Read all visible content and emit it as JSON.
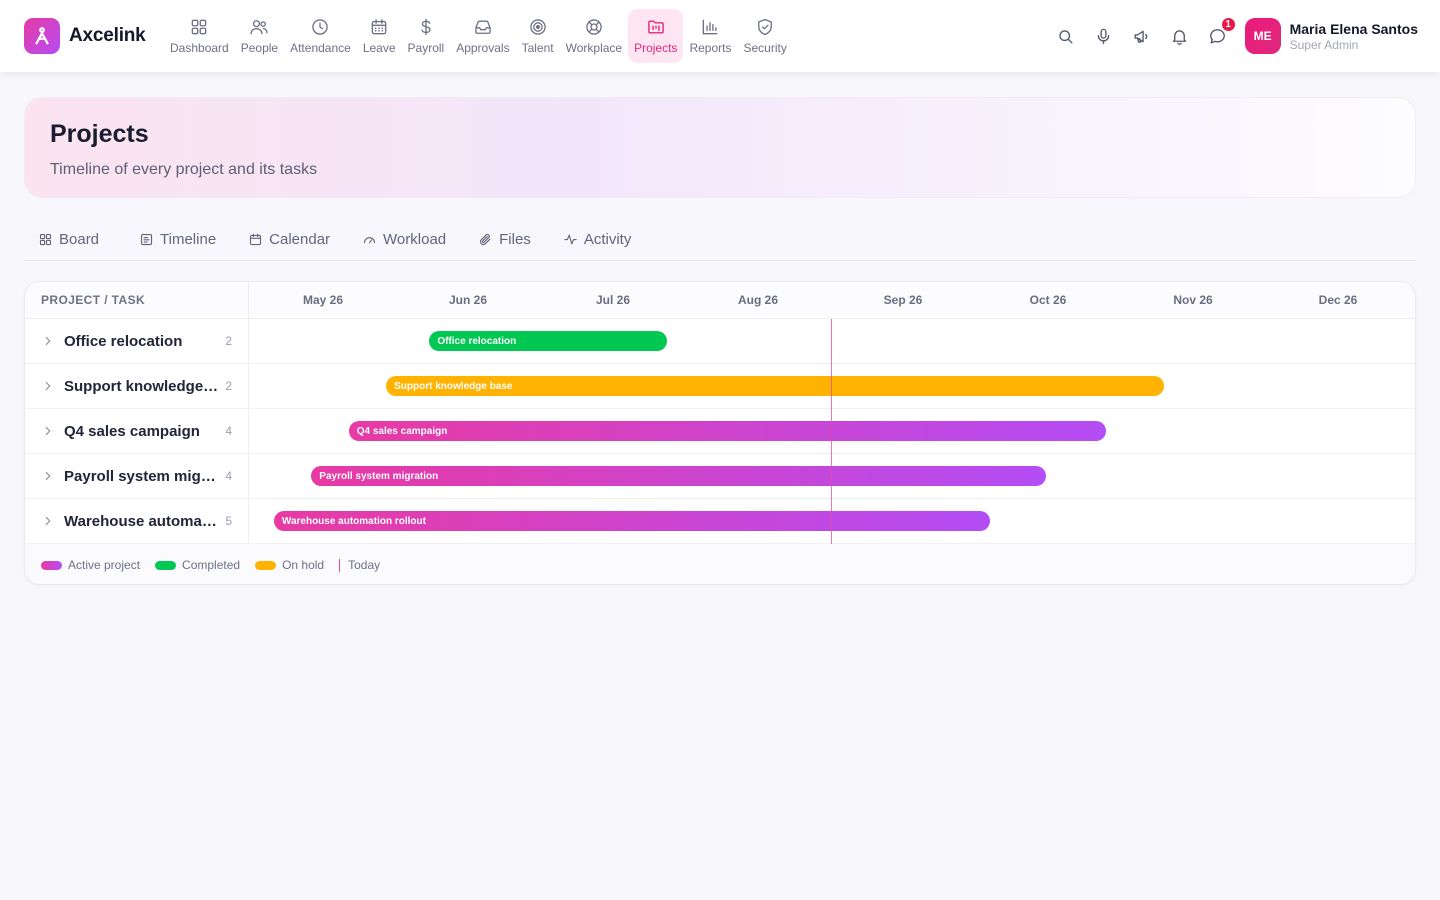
{
  "brand": {
    "name": "Axcelink",
    "accent": "#e0287f",
    "gradient": [
      "#e83aa3",
      "#b44df5"
    ]
  },
  "nav": [
    {
      "label": "Dashboard",
      "icon": "grid-icon"
    },
    {
      "label": "People",
      "icon": "users-icon"
    },
    {
      "label": "Attendance",
      "icon": "clock-icon"
    },
    {
      "label": "Leave",
      "icon": "calendar-icon"
    },
    {
      "label": "Payroll",
      "icon": "dollar-icon"
    },
    {
      "label": "Approvals",
      "icon": "inbox-icon"
    },
    {
      "label": "Talent",
      "icon": "target-icon"
    },
    {
      "label": "Workplace",
      "icon": "lifebuoy-icon"
    },
    {
      "label": "Projects",
      "icon": "kanban-icon",
      "active": true
    },
    {
      "label": "Reports",
      "icon": "bar-chart-icon"
    },
    {
      "label": "Security",
      "icon": "shield-icon"
    }
  ],
  "tools": {
    "notifications_badge": "1"
  },
  "user": {
    "initials": "ME",
    "name": "Maria Elena Santos",
    "role": "Super Admin"
  },
  "page": {
    "title": "Projects",
    "subtitle": "Timeline of every project and its tasks"
  },
  "tabs": [
    {
      "label": "Board",
      "icon": "grid-icon"
    },
    {
      "label": "Timeline",
      "icon": "timeline-icon"
    },
    {
      "label": "Calendar",
      "icon": "calendar-icon"
    },
    {
      "label": "Workload",
      "icon": "gauge-icon"
    },
    {
      "label": "Files",
      "icon": "paperclip-icon"
    },
    {
      "label": "Activity",
      "icon": "activity-icon"
    }
  ],
  "gantt": {
    "column_header": "PROJECT / TASK",
    "months": [
      "May 26",
      "Jun 26",
      "Jul 26",
      "Aug 26",
      "Sep 26",
      "Oct 26",
      "Nov 26",
      "Dec 26"
    ],
    "today": "2026-09-01",
    "rows": [
      {
        "name": "Office relocation",
        "bar_label": "Office relocation",
        "count": "2",
        "status": "completed",
        "start": "2026-06-08",
        "end": "2026-07-28"
      },
      {
        "name": "Support knowledge base",
        "bar_label": "Support knowledge base",
        "count": "2",
        "status": "hold",
        "start": "2026-05-30",
        "end": "2026-11-10"
      },
      {
        "name": "Q4 sales campaign",
        "bar_label": "Q4 sales campaign",
        "count": "4",
        "status": "active",
        "start": "2026-05-22",
        "end": "2026-10-29"
      },
      {
        "name": "Payroll system migration",
        "bar_label": "Payroll system migration",
        "count": "4",
        "status": "active",
        "start": "2026-05-14",
        "end": "2026-10-16"
      },
      {
        "name": "Warehouse automation rollout",
        "bar_label": "Warehouse automation rollout",
        "count": "5",
        "status": "active",
        "start": "2026-05-06",
        "end": "2026-10-04"
      }
    ],
    "legend": {
      "active": "Active project",
      "completed": "Completed",
      "hold": "On hold",
      "today": "Today"
    },
    "status_colors": {
      "completed": "#00c853",
      "hold": "#ffb300",
      "active": [
        "#e83aa3",
        "#b44df5"
      ],
      "today": "#e14aa5"
    }
  }
}
